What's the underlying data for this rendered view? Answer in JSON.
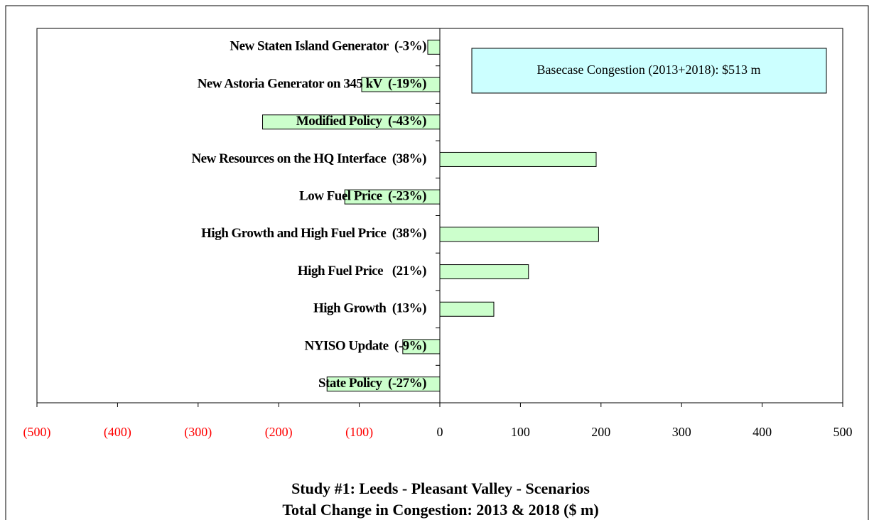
{
  "chart_data": {
    "type": "hbar",
    "title": "Study #1: Leeds - Pleasant Valley - Scenarios",
    "subtitle": "Total Change in Congestion: 2013 & 2018 ($ m)",
    "annotation": "Basecase Congestion (2013+2018): $513 m",
    "categories": [
      "New Staten Island Generator  (-3%)",
      "New Astoria Generator on 345 kV  (-19%)",
      "Modified Policy  (-43%)",
      "New Resources on the HQ Interface  (38%)",
      "Low Fuel Price  (-23%)",
      "High Growth and High Fuel Price  (38%)",
      "High Fuel Price   (21%)",
      "High Growth  (13%)",
      "NYISO Update  (-9%)",
      "State Policy  (-27%)"
    ],
    "values": [
      -15,
      -97,
      -220,
      194,
      -118,
      197,
      110,
      67,
      -46,
      -140
    ],
    "color": "#ccffcc",
    "annotation_color": "#ccffff",
    "negative_tick_color": "#ff0000",
    "xlim": [
      -500,
      500
    ],
    "xticks": [
      {
        "value": -500,
        "label": "(500)"
      },
      {
        "value": -400,
        "label": "(400)"
      },
      {
        "value": -300,
        "label": "(300)"
      },
      {
        "value": -200,
        "label": "(200)"
      },
      {
        "value": -100,
        "label": "(100)"
      },
      0,
      100,
      200,
      300,
      400,
      500
    ]
  }
}
